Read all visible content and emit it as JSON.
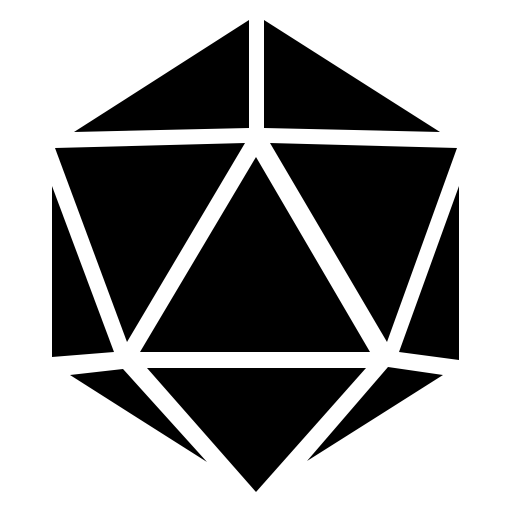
{
  "icon": {
    "name": "d20-icosahedron-icon",
    "fill_color": "#000000",
    "background_color": "#ffffff"
  }
}
